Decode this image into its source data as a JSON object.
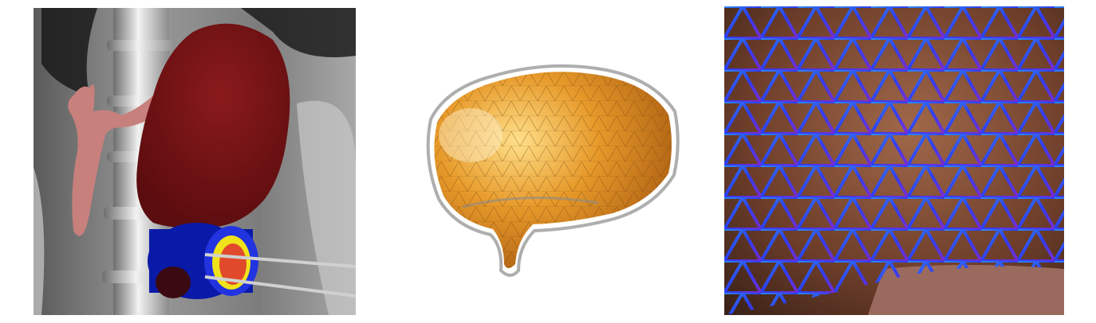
{
  "figure": {
    "panels": [
      {
        "id": "kidney",
        "icon": "kidney-tumor-ablation-render-icon"
      },
      {
        "id": "brain",
        "icon": "brain-surface-mesh-icon"
      },
      {
        "id": "liver",
        "icon": "liver-wireframe-overlay-icon"
      }
    ]
  },
  "colors": {
    "kidney": "#7a1416",
    "vessel": "#c8807c",
    "ablation_outer": "#0a1aa8",
    "ablation_yellow": "#f0e21a",
    "ablation_core": "#e04a2a",
    "brain_fill": "#e79a2a",
    "mesh_grey": "#9a9a9a",
    "liver_mesh_blue": "#2a3dff",
    "liver_mesh_violet": "#6a2ad8"
  }
}
